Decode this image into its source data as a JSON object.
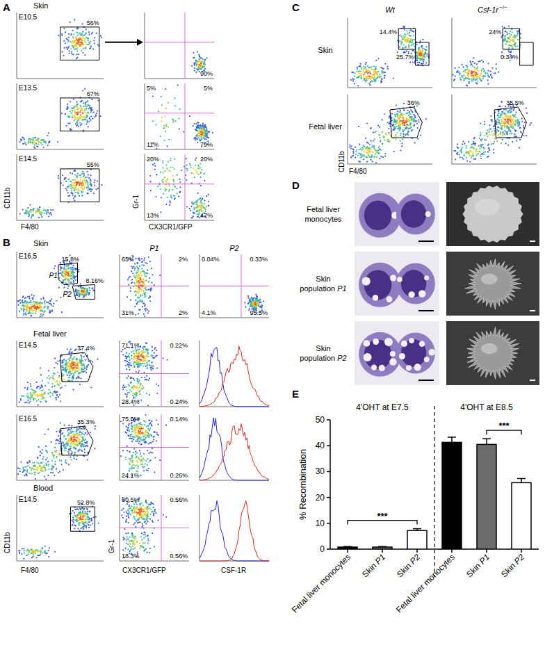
{
  "panels": {
    "A": {
      "label": "A",
      "title": "Skin",
      "x_label_left": "F4/80",
      "y_label_left": "CD11b",
      "x_label_right": "CX3CR1/GFP",
      "y_label_right": "Gr-1",
      "rows": [
        {
          "stage": "E10.5",
          "gate": "56%",
          "quadrants": {
            "br": "90%"
          }
        },
        {
          "stage": "E13.5",
          "gate": "67%",
          "quadrants": {
            "tl": "5%",
            "tr": "5%",
            "bl": "11%",
            "br": "79%"
          }
        },
        {
          "stage": "E14.5",
          "gate": "55%",
          "quadrants": {
            "tl": "20%",
            "tr": "20%",
            "bl": "13%",
            "br": "47%"
          }
        }
      ]
    },
    "B": {
      "label": "B",
      "x_labels": [
        "F4/80",
        "CX3CR1/GFP",
        "CSF-1R"
      ],
      "y_labels": [
        "CD11b",
        "Gr-1"
      ],
      "sections": [
        {
          "title": "Skin",
          "rows": [
            {
              "stage": "E16.5",
              "gates": [
                {
                  "name": "P1",
                  "value": "15.8%"
                },
                {
                  "name": "P2",
                  "value": "8.16%"
                }
              ],
              "subplots": [
                {
                  "title": "P1",
                  "quadrants": {
                    "tl": "65%",
                    "tr": "2%",
                    "bl": "31%",
                    "br": "2%"
                  }
                },
                {
                  "title": "P2",
                  "quadrants": {
                    "tl": "0.04%",
                    "tr": "0.33%",
                    "bl": "4.1%",
                    "br": "95.5%"
                  }
                }
              ]
            }
          ]
        },
        {
          "title": "Fetal liver",
          "rows": [
            {
              "stage": "E14.5",
              "gate": "37.4%",
              "quadrants": {
                "tl": "71.1%",
                "tr": "0.22%",
                "bl": "28.4%",
                "br": "0.24%"
              }
            },
            {
              "stage": "E16.5",
              "gate": "35.3%",
              "quadrants": {
                "tl": "75.5%",
                "tr": "0.14%",
                "bl": "24.1%",
                "br": "0.26%"
              }
            }
          ]
        },
        {
          "title": "Blood",
          "rows": [
            {
              "stage": "E14.5",
              "gate": "52.8%",
              "quadrants": {
                "tl": "80.5%",
                "tr": "0.56%",
                "bl": "18.3%",
                "br": "0.56%"
              }
            }
          ]
        }
      ]
    },
    "C": {
      "label": "C",
      "columns": [
        {
          "text": "Wt"
        },
        {
          "text": "Csf-1r",
          "superscript": "−/−"
        }
      ],
      "x_label": "F4/80",
      "y_label": "CD11b",
      "rows": [
        {
          "title": "Skin",
          "gates": [
            [
              "14.4%",
              "25.7%"
            ],
            [
              "24%",
              "0.34%"
            ]
          ]
        },
        {
          "title": "Fetal liver",
          "gates": [
            [
              "36%"
            ],
            [
              "35.5%"
            ]
          ]
        }
      ]
    },
    "D": {
      "label": "D",
      "rows": [
        "Fetal liver monocytes",
        "Skin population P1",
        "Skin population P2"
      ]
    }
  },
  "chart_data": {
    "type": "bar",
    "label": "E",
    "y_label": "% Recombination",
    "group_labels": [
      "4'OHT at E7.5",
      "4'OHT at E8.5"
    ],
    "categories": [
      "Fetal liver monocytes",
      "Skin P1",
      "Skin P2",
      "Fetal liver monocytes",
      "Skin P1",
      "Skin P2"
    ],
    "values": [
      0.8,
      0.8,
      7.2,
      41.3,
      40.5,
      25.7
    ],
    "errors": [
      0.2,
      0.2,
      0.7,
      2.0,
      2.2,
      1.6
    ],
    "colors": [
      "#000000",
      "#6b6b6b",
      "#ffffff",
      "#000000",
      "#6b6b6b",
      "#ffffff"
    ],
    "ylim": [
      0,
      50
    ],
    "yticks": [
      0,
      10,
      20,
      30,
      40,
      50
    ],
    "grid": false,
    "annotations": [
      {
        "text": "***",
        "from": 0,
        "to": 2
      },
      {
        "text": "***",
        "from": 4,
        "to": 5
      }
    ]
  }
}
